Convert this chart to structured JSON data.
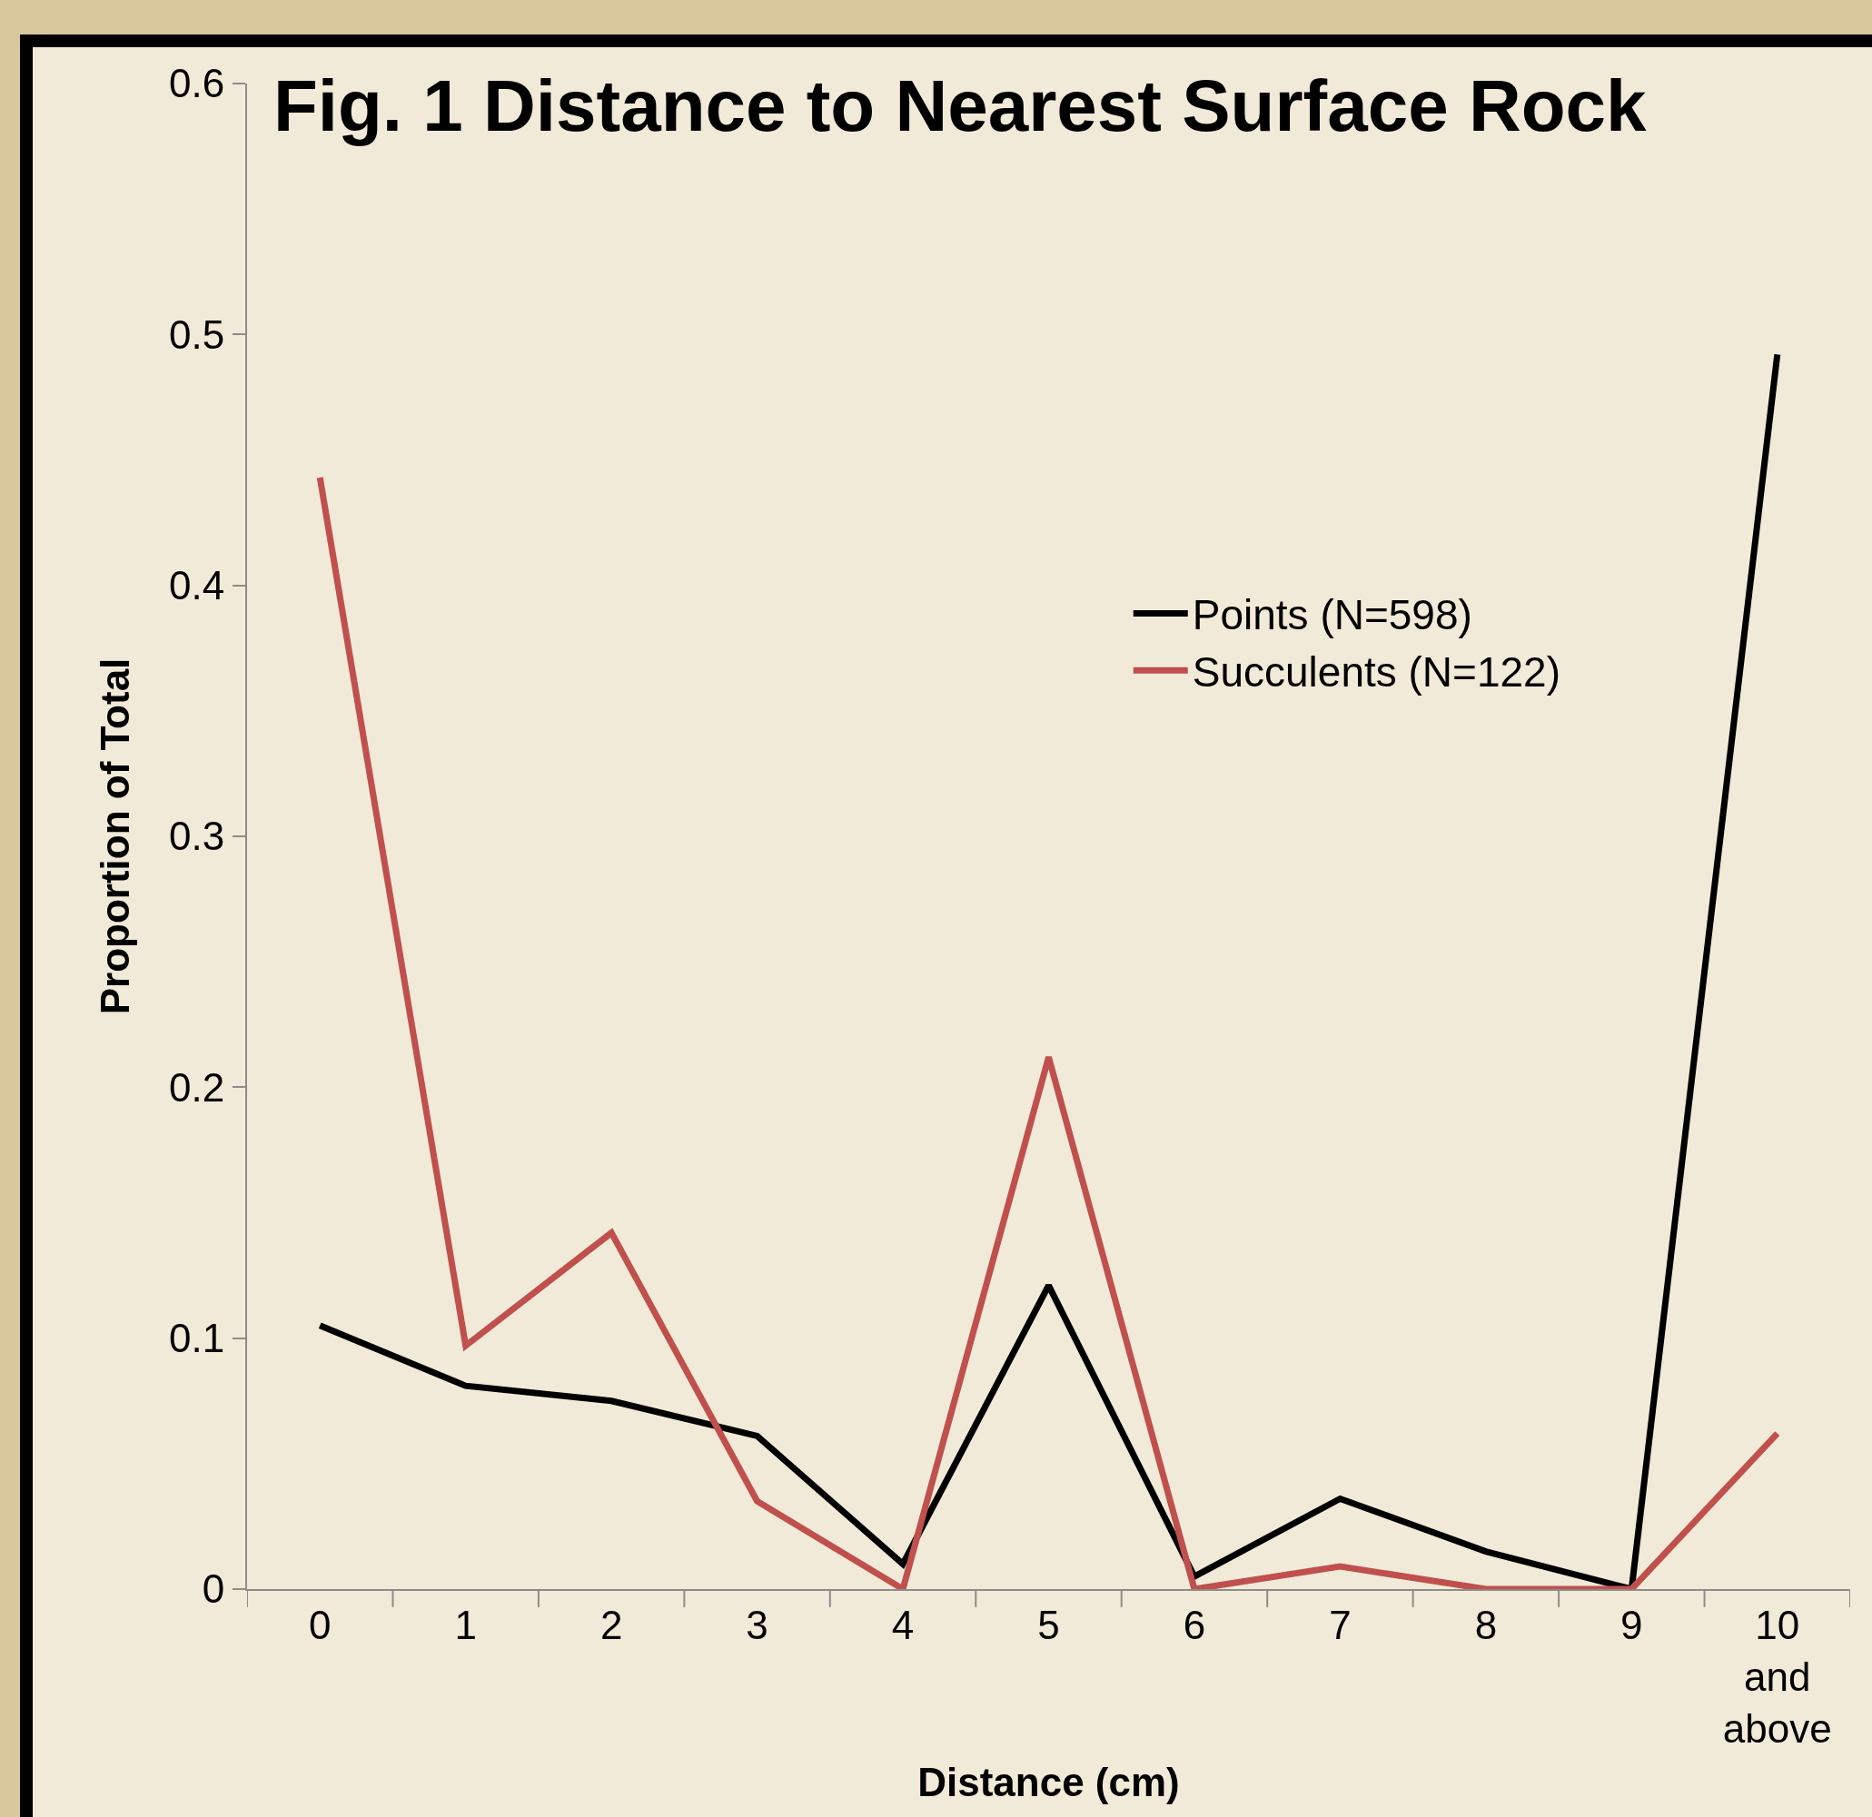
{
  "chart_data": {
    "type": "line",
    "title": "Fig. 1 Distance to Nearest Surface Rock",
    "xlabel": "Distance (cm)",
    "ylabel": "Proportion of Total",
    "categories": [
      "0",
      "1",
      "2",
      "3",
      "4",
      "5",
      "6",
      "7",
      "8",
      "9",
      "10 and above"
    ],
    "series": [
      {
        "name": "Points (N=598)",
        "color": "#000000",
        "values": [
          0.105,
          0.081,
          0.075,
          0.061,
          0.01,
          0.121,
          0.005,
          0.036,
          0.015,
          0,
          0.492
        ]
      },
      {
        "name": "Succulents (N=122)",
        "color": "#c0504d",
        "values": [
          0.443,
          0.097,
          0.142,
          0.035,
          0,
          0.212,
          0,
          0.009,
          0,
          0,
          0.062
        ]
      }
    ],
    "ylim": [
      0,
      0.6
    ],
    "yticks": [
      0,
      0.1,
      0.2,
      0.3,
      0.4,
      0.5,
      0.6
    ],
    "grid": false,
    "legend": "right",
    "marker": "none",
    "line_style": "solid"
  }
}
